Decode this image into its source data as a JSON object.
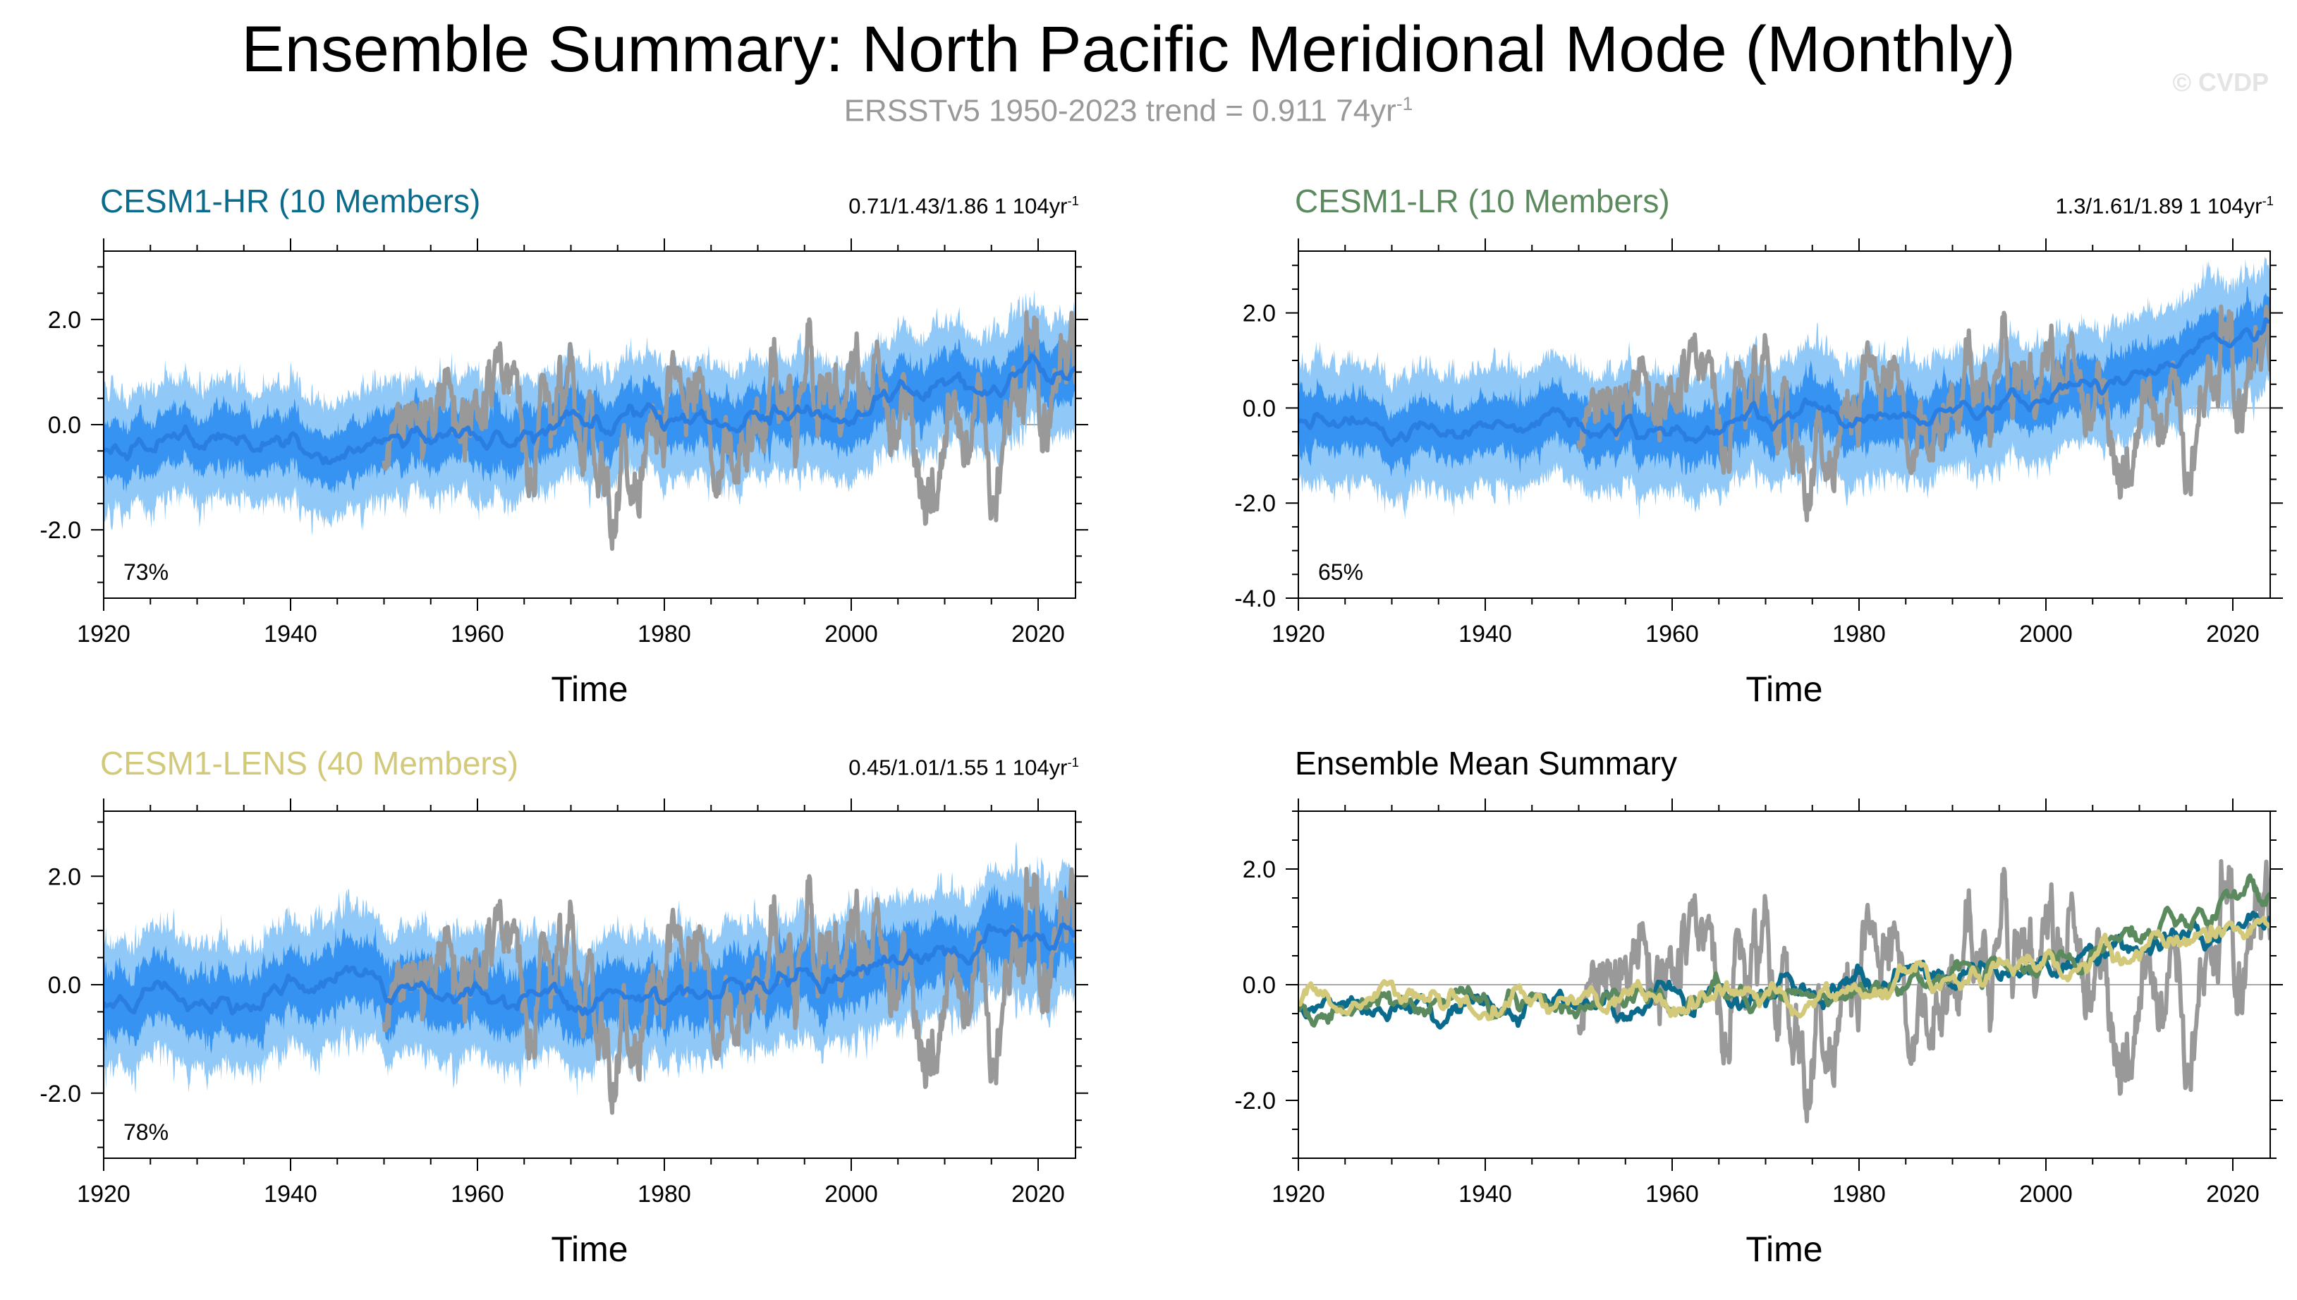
{
  "title": "Ensemble Summary: North Pacific Meridional Mode (Monthly)",
  "subtitle_main": "ERSSTv5 1950-2023 trend = 0.911 74yr",
  "subtitle_sup": "-1",
  "watermark": "© CVDP",
  "colors": {
    "obs": "#999999",
    "spread_outer": "#90c8f8",
    "spread_inner": "#3390f0",
    "ens_mean": "#2a7ee2",
    "hr": "#0a6b8c",
    "lr": "#5b8a5e",
    "lens": "#d3c97a",
    "axis": "#000000",
    "zero_line": "#8c8c8c"
  },
  "chart_data": [
    {
      "id": "hr",
      "type": "area",
      "title": "CESM1-HR (10 Members)",
      "title_color": "#0a6b8c",
      "trend_text": "0.71/1.43/1.86 1 104yr",
      "trend_sup": "-1",
      "percent_label": "73%",
      "xlabel": "Time",
      "xlim": [
        1920,
        2024
      ],
      "ylim": [
        -3.3,
        3.3
      ],
      "xticks": [
        1920,
        1940,
        1960,
        1980,
        2000,
        2020
      ],
      "yticks": [
        -2.0,
        0.0,
        2.0
      ],
      "ytick_labels": [
        "-2.0",
        "0.0",
        "2.0"
      ],
      "mean_trend": [
        [
          1920,
          -0.5
        ],
        [
          1950,
          -0.35
        ],
        [
          1980,
          -0.05
        ],
        [
          2000,
          0.35
        ],
        [
          2024,
          1.15
        ]
      ],
      "outer_halfwidth": 1.1,
      "inner_halfwidth": 0.55,
      "series": [
        {
          "name": "ERSSTv5",
          "key": "obs",
          "start": 1950,
          "end": 2024
        }
      ]
    },
    {
      "id": "lr",
      "type": "area",
      "title": "CESM1-LR (10 Members)",
      "title_color": "#5b8a5e",
      "trend_text": "1.3/1.61/1.89 1 104yr",
      "trend_sup": "-1",
      "percent_label": "65%",
      "xlabel": "Time",
      "xlim": [
        1920,
        2024
      ],
      "ylim": [
        -4.0,
        3.3
      ],
      "xticks": [
        1920,
        1940,
        1960,
        1980,
        2000,
        2020
      ],
      "yticks": [
        -4.0,
        -2.0,
        0.0,
        2.0
      ],
      "ytick_labels": [
        "-4.0",
        "-2.0",
        "0.0",
        "2.0"
      ],
      "mean_trend": [
        [
          1920,
          -0.45
        ],
        [
          1950,
          -0.35
        ],
        [
          1980,
          -0.15
        ],
        [
          2000,
          0.4
        ],
        [
          2024,
          1.6
        ]
      ],
      "outer_halfwidth": 1.25,
      "inner_halfwidth": 0.6,
      "series": [
        {
          "name": "ERSSTv5",
          "key": "obs",
          "start": 1950,
          "end": 2024
        }
      ]
    },
    {
      "id": "lens",
      "type": "area",
      "title": "CESM1-LENS (40 Members)",
      "title_color": "#d3c97a",
      "trend_text": "0.45/1.01/1.55 1 104yr",
      "trend_sup": "-1",
      "percent_label": "78%",
      "xlabel": "Time",
      "xlim": [
        1920,
        2024
      ],
      "ylim": [
        -3.2,
        3.2
      ],
      "xticks": [
        1920,
        1940,
        1960,
        1980,
        2000,
        2020
      ],
      "yticks": [
        -2.0,
        0.0,
        2.0
      ],
      "ytick_labels": [
        "-2.0",
        "0.0",
        "2.0"
      ],
      "mean_trend": [
        [
          1920,
          -0.3
        ],
        [
          1950,
          -0.25
        ],
        [
          1980,
          -0.1
        ],
        [
          2000,
          0.3
        ],
        [
          2024,
          1.0
        ]
      ],
      "outer_halfwidth": 1.15,
      "inner_halfwidth": 0.6,
      "series": [
        {
          "name": "ERSSTv5",
          "key": "obs",
          "start": 1950,
          "end": 2024
        }
      ]
    },
    {
      "id": "summary",
      "type": "line",
      "title": "Ensemble Mean Summary",
      "title_color": "#000000",
      "trend_text": "",
      "trend_sup": "",
      "percent_label": "",
      "xlabel": "Time",
      "xlim": [
        1920,
        2024
      ],
      "ylim": [
        -3.0,
        3.0
      ],
      "xticks": [
        1920,
        1940,
        1960,
        1980,
        2000,
        2020
      ],
      "yticks": [
        -2.0,
        0.0,
        2.0
      ],
      "ytick_labels": [
        "-2.0",
        "0.0",
        "2.0"
      ],
      "series": [
        {
          "name": "ERSSTv5",
          "key": "obs",
          "start": 1950,
          "end": 2024
        },
        {
          "name": "CESM1-HR",
          "key": "hr",
          "start": 1920,
          "end": 2024,
          "trend": [
            [
              1920,
              -0.45
            ],
            [
              1950,
              -0.3
            ],
            [
              1980,
              0.0
            ],
            [
              2000,
              0.35
            ],
            [
              2024,
              1.2
            ]
          ]
        },
        {
          "name": "CESM1-LR",
          "key": "lr",
          "start": 1920,
          "end": 2024,
          "trend": [
            [
              1920,
              -0.4
            ],
            [
              1950,
              -0.3
            ],
            [
              1980,
              -0.1
            ],
            [
              2000,
              0.4
            ],
            [
              2024,
              1.7
            ]
          ]
        },
        {
          "name": "CESM1-LENS",
          "key": "lens",
          "start": 1920,
          "end": 2024,
          "trend": [
            [
              1920,
              -0.3
            ],
            [
              1950,
              -0.25
            ],
            [
              1980,
              -0.1
            ],
            [
              2000,
              0.3
            ],
            [
              2024,
              1.0
            ]
          ]
        }
      ]
    }
  ]
}
